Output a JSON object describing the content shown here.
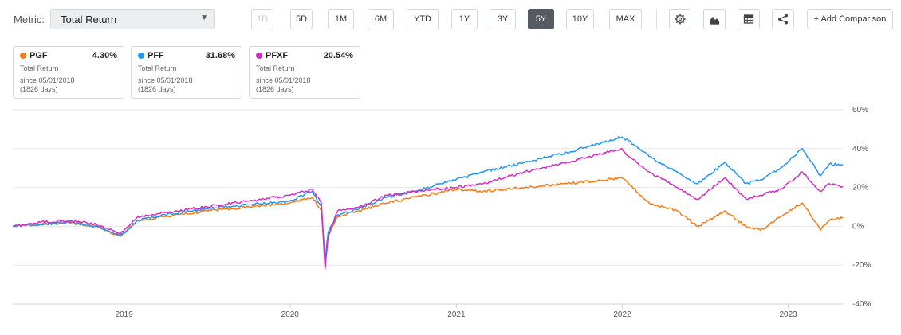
{
  "toolbar": {
    "metric_label": "Metric:",
    "metric_value": "Total Return",
    "periods": [
      {
        "label": "1D",
        "state": "disabled"
      },
      {
        "label": "5D",
        "state": "normal"
      },
      {
        "label": "1M",
        "state": "normal"
      },
      {
        "label": "6M",
        "state": "normal"
      },
      {
        "label": "YTD",
        "state": "normal"
      },
      {
        "label": "1Y",
        "state": "normal"
      },
      {
        "label": "3Y",
        "state": "normal"
      },
      {
        "label": "5Y",
        "state": "active"
      },
      {
        "label": "10Y",
        "state": "normal"
      },
      {
        "label": "MAX",
        "state": "normal"
      }
    ],
    "icons": [
      "gear-icon",
      "mountain-chart-icon",
      "table-icon",
      "share-icon"
    ],
    "add_comparison_label": "+ Add Comparison"
  },
  "cards": [
    {
      "ticker": "PGF",
      "return": "4.30%",
      "color": "#f57c14",
      "metric": "Total Return",
      "since": "since 05/01/2018",
      "days": "(1826 days)"
    },
    {
      "ticker": "PFF",
      "return": "31.68%",
      "color": "#2196f3",
      "metric": "Total Return",
      "since": "since 05/01/2018",
      "days": "(1826 days)"
    },
    {
      "ticker": "PFXF",
      "return": "20.54%",
      "color": "#d02fc4",
      "metric": "Total Return",
      "since": "since 05/01/2018",
      "days": "(1826 days)"
    }
  ],
  "chart_data": {
    "type": "line",
    "x_start": "2018-05-01",
    "x_end": "2023-05-01",
    "xticks": [
      "2019",
      "2020",
      "2021",
      "2022",
      "2023"
    ],
    "yticks": [
      "60%",
      "40%",
      "20%",
      "0%",
      "-20%",
      "-40%"
    ],
    "ylim": [
      -40,
      60
    ],
    "grid": true,
    "series": [
      {
        "name": "PGF",
        "color": "#f57c14",
        "points": [
          [
            "2018-05-01",
            0
          ],
          [
            "2018-07-01",
            1
          ],
          [
            "2018-09-01",
            2
          ],
          [
            "2018-11-01",
            0
          ],
          [
            "2018-12-24",
            -5
          ],
          [
            "2019-01-31",
            3
          ],
          [
            "2019-04-01",
            5
          ],
          [
            "2019-07-01",
            8
          ],
          [
            "2019-10-01",
            10
          ],
          [
            "2019-12-31",
            12
          ],
          [
            "2020-02-19",
            15
          ],
          [
            "2020-03-10",
            8
          ],
          [
            "2020-03-18",
            -20
          ],
          [
            "2020-03-25",
            -5
          ],
          [
            "2020-04-15",
            5
          ],
          [
            "2020-06-01",
            8
          ],
          [
            "2020-08-01",
            12
          ],
          [
            "2020-10-01",
            15
          ],
          [
            "2020-12-31",
            19
          ],
          [
            "2021-03-01",
            18
          ],
          [
            "2021-06-01",
            20
          ],
          [
            "2021-09-01",
            22
          ],
          [
            "2021-12-31",
            25
          ],
          [
            "2022-01-15",
            22
          ],
          [
            "2022-03-01",
            12
          ],
          [
            "2022-05-01",
            8
          ],
          [
            "2022-06-16",
            0
          ],
          [
            "2022-08-15",
            8
          ],
          [
            "2022-09-30",
            0
          ],
          [
            "2022-11-01",
            -2
          ],
          [
            "2022-12-15",
            5
          ],
          [
            "2023-02-01",
            12
          ],
          [
            "2023-03-13",
            -2
          ],
          [
            "2023-04-01",
            3
          ],
          [
            "2023-05-01",
            4.3
          ]
        ]
      },
      {
        "name": "PFF",
        "color": "#2196f3",
        "points": [
          [
            "2018-05-01",
            0
          ],
          [
            "2018-07-01",
            1
          ],
          [
            "2018-09-01",
            2
          ],
          [
            "2018-11-01",
            0
          ],
          [
            "2018-12-24",
            -5
          ],
          [
            "2019-01-31",
            3
          ],
          [
            "2019-04-01",
            6
          ],
          [
            "2019-07-01",
            9
          ],
          [
            "2019-10-01",
            11
          ],
          [
            "2019-12-31",
            13
          ],
          [
            "2020-02-19",
            18
          ],
          [
            "2020-03-10",
            10
          ],
          [
            "2020-03-18",
            -18
          ],
          [
            "2020-03-25",
            -3
          ],
          [
            "2020-04-15",
            6
          ],
          [
            "2020-06-01",
            9
          ],
          [
            "2020-08-01",
            15
          ],
          [
            "2020-10-01",
            18
          ],
          [
            "2020-12-31",
            24
          ],
          [
            "2021-03-01",
            28
          ],
          [
            "2021-06-01",
            33
          ],
          [
            "2021-09-01",
            38
          ],
          [
            "2021-12-31",
            46
          ],
          [
            "2022-01-15",
            44
          ],
          [
            "2022-03-01",
            36
          ],
          [
            "2022-05-01",
            28
          ],
          [
            "2022-06-16",
            22
          ],
          [
            "2022-08-15",
            33
          ],
          [
            "2022-09-30",
            22
          ],
          [
            "2022-11-01",
            24
          ],
          [
            "2022-12-15",
            30
          ],
          [
            "2023-02-01",
            40
          ],
          [
            "2023-03-13",
            26
          ],
          [
            "2023-04-01",
            32
          ],
          [
            "2023-05-01",
            31.68
          ]
        ]
      },
      {
        "name": "PFXF",
        "color": "#d02fc4",
        "points": [
          [
            "2018-05-01",
            0
          ],
          [
            "2018-07-01",
            2
          ],
          [
            "2018-09-01",
            3
          ],
          [
            "2018-11-01",
            1
          ],
          [
            "2018-12-24",
            -4
          ],
          [
            "2019-01-31",
            5
          ],
          [
            "2019-04-01",
            7
          ],
          [
            "2019-07-01",
            10
          ],
          [
            "2019-10-01",
            13
          ],
          [
            "2019-12-31",
            16
          ],
          [
            "2020-02-19",
            19
          ],
          [
            "2020-03-10",
            12
          ],
          [
            "2020-03-18",
            -22
          ],
          [
            "2020-03-25",
            -5
          ],
          [
            "2020-04-15",
            8
          ],
          [
            "2020-06-01",
            10
          ],
          [
            "2020-08-01",
            16
          ],
          [
            "2020-10-01",
            18
          ],
          [
            "2020-12-31",
            20
          ],
          [
            "2021-03-01",
            22
          ],
          [
            "2021-06-01",
            28
          ],
          [
            "2021-09-01",
            33
          ],
          [
            "2021-12-31",
            40
          ],
          [
            "2022-01-15",
            36
          ],
          [
            "2022-03-01",
            28
          ],
          [
            "2022-05-01",
            20
          ],
          [
            "2022-06-16",
            14
          ],
          [
            "2022-08-15",
            25
          ],
          [
            "2022-09-30",
            14
          ],
          [
            "2022-11-01",
            16
          ],
          [
            "2022-12-15",
            19
          ],
          [
            "2023-02-01",
            28
          ],
          [
            "2023-03-13",
            18
          ],
          [
            "2023-04-01",
            22
          ],
          [
            "2023-05-01",
            20.54
          ]
        ]
      }
    ]
  }
}
